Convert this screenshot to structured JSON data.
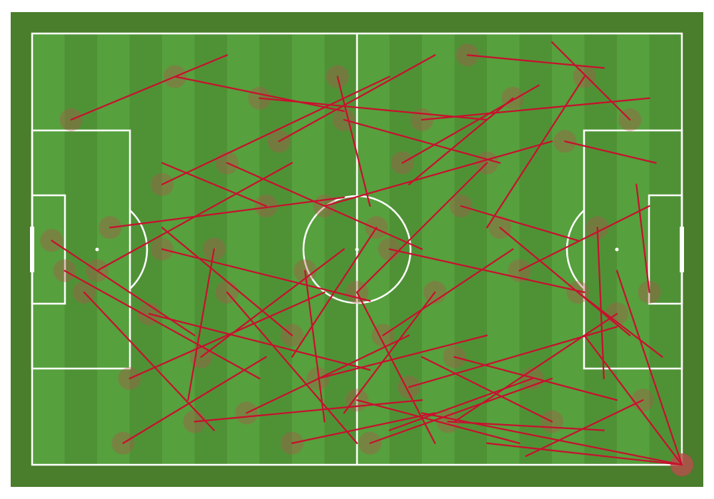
{
  "chart_data": {
    "type": "pass_map",
    "xlim": [
      0,
      100
    ],
    "ylim": [
      0,
      100
    ],
    "color": "#c8102e",
    "marker_color": "#b4504a",
    "passes": {
      "x": [
        6,
        10,
        15,
        20,
        25,
        30,
        35,
        40,
        45,
        50,
        55,
        60,
        65,
        70,
        75,
        80,
        85,
        90,
        100,
        100,
        100,
        100,
        5,
        8,
        12,
        18,
        22,
        28,
        33,
        38,
        42,
        47,
        52,
        57,
        62,
        67,
        72,
        77,
        82,
        87,
        92,
        95,
        3,
        14,
        26,
        36,
        44,
        54,
        64,
        74,
        84,
        94,
        50,
        53,
        48,
        30,
        20,
        66,
        58,
        40
      ],
      "y": [
        20,
        55,
        80,
        35,
        90,
        60,
        15,
        70,
        40,
        85,
        50,
        20,
        75,
        30,
        55,
        90,
        10,
        65,
        100,
        100,
        100,
        100,
        55,
        60,
        45,
        65,
        10,
        50,
        88,
        25,
        55,
        10,
        95,
        30,
        60,
        5,
        45,
        80,
        25,
        45,
        20,
        60,
        48,
        95,
        75,
        40,
        80,
        70,
        90,
        15,
        60,
        85,
        60,
        45,
        20,
        30,
        50,
        40,
        82,
        95
      ],
      "end_x": [
        30,
        40,
        45,
        55,
        60,
        50,
        70,
        20,
        80,
        75,
        85,
        95,
        90,
        50,
        95,
        60,
        70,
        65,
        85,
        70,
        90,
        60,
        35,
        28,
        48,
        52,
        48,
        24,
        58,
        62,
        45,
        52,
        80,
        78,
        48,
        88,
        92,
        55,
        96,
        88,
        80,
        93,
        25,
        36,
        48,
        20,
        70,
        74,
        88,
        58,
        97,
        76,
        62,
        40,
        72,
        60,
        52,
        84,
        90,
        62
      ],
      "end_y": [
        5,
        30,
        60,
        10,
        85,
        95,
        20,
        45,
        25,
        95,
        60,
        15,
        85,
        60,
        40,
        75,
        45,
        90,
        70,
        95,
        55,
        88,
        80,
        92,
        38,
        78,
        18,
        85,
        70,
        5,
        90,
        40,
        80,
        12,
        88,
        8,
        70,
        92,
        30,
        80,
        2,
        35,
        70,
        75,
        50,
        30,
        70,
        50,
        92,
        35,
        75,
        98,
        95,
        75,
        30,
        50,
        62,
        48,
        68,
        88
      ]
    }
  }
}
